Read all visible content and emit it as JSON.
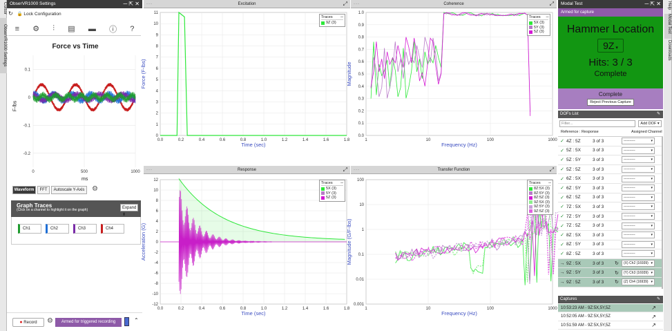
{
  "side_tabs": [
    "Cursor",
    "ObserVR1000 Settings"
  ],
  "right_side_tabs": [
    "Help",
    "Modal Test",
    "Downloads"
  ],
  "settings": {
    "title": "ObserVR1000 Settings",
    "lock": "Lock Configuration"
  },
  "fvt": {
    "title": "Force vs Time",
    "ylabel": "F-lbs",
    "xlabel": "ms",
    "yticks": [
      "0.1",
      "0",
      "-0.1",
      "-0.2"
    ],
    "xticks": [
      "0",
      "500",
      "1000"
    ]
  },
  "tabs": {
    "waveform": "Waveform",
    "fft": "FFT",
    "autoscale": "Autoscale Y-Axis"
  },
  "graph_traces": {
    "title": "Graph Traces",
    "hint": "(Click on a channel to highlight it on the graph)",
    "dropdown": "Expand",
    "channels": [
      {
        "label": "Ch1",
        "color": "#1e9c2e"
      },
      {
        "label": "Ch2",
        "color": "#1f6fd6"
      },
      {
        "label": "Ch3",
        "color": "#7a2aa8"
      },
      {
        "label": "Ch4",
        "color": "#c81e1e"
      }
    ]
  },
  "bottom": {
    "record": "Record",
    "status": "Armed for triggered recording"
  },
  "excitation": {
    "title": "Excitation",
    "ylabel": "Force (F-lbs)",
    "xlabel": "Time (sec)",
    "yticks": [
      "11",
      "10",
      "9",
      "8",
      "7",
      "6",
      "5",
      "4",
      "3",
      "2",
      "1",
      "0"
    ],
    "xticks": [
      "0.0",
      "0.2",
      "0.4",
      "0.6",
      "0.8",
      "1.0",
      "1.2",
      "1.4",
      "1.6",
      "1.8"
    ],
    "legend": {
      "title": "Traces",
      "items": [
        {
          "label": "9Z (3)",
          "color": "#2ee83a"
        }
      ]
    }
  },
  "response": {
    "title": "Response",
    "ylabel": "Acceleration (G)",
    "xlabel": "Time (sec)",
    "yticks": [
      "12",
      "10",
      "8",
      "6",
      "4",
      "2",
      "0",
      "-2",
      "-4",
      "-6",
      "-8",
      "-10",
      "-12"
    ],
    "xticks": [
      "0.0",
      "0.2",
      "0.4",
      "0.6",
      "0.8",
      "1.0",
      "1.2",
      "1.4",
      "1.6",
      "1.8"
    ],
    "legend": {
      "title": "Traces",
      "items": [
        {
          "label": "5X (3)",
          "color": "#2ee83a"
        },
        {
          "label": "5Y (3)",
          "color": "#b87ac8"
        },
        {
          "label": "5Z (3)",
          "color": "#d41ad4"
        }
      ]
    }
  },
  "coherence": {
    "title": "Coherence",
    "ylabel": "Magnitude",
    "xlabel": "Frequency (Hz)",
    "yticks": [
      "1.0",
      "0.9",
      "0.8",
      "0.7",
      "0.6",
      "0.5",
      "0.4",
      "0.3",
      "0.2",
      "0.1",
      "0.0"
    ],
    "xticks": [
      "1",
      "10",
      "100",
      "1000"
    ],
    "legend": {
      "title": "Traces",
      "items": [
        {
          "label": "5X (3)",
          "color": "#2ee83a"
        },
        {
          "label": "5Y (3)",
          "color": "#b87ac8"
        },
        {
          "label": "5Z (3)",
          "color": "#d41ad4"
        }
      ]
    }
  },
  "transfer": {
    "title": "Transfer Function",
    "ylabel": "Magnitude (G/F-lbs)",
    "xlabel": "Frequency (Hz)",
    "yticks": [
      "100",
      "10",
      "1",
      "0.1",
      "0.01",
      "0.001"
    ],
    "xticks": [
      "1",
      "10",
      "100",
      "1000"
    ],
    "legend": {
      "title": "Traces",
      "items": [
        {
          "label": "8Z:5X (3)",
          "color": "#2ee83a"
        },
        {
          "label": "8Z:5Y (3)",
          "color": "#b87ac8"
        },
        {
          "label": "8Z:5Z (3)",
          "color": "#d41ad4"
        },
        {
          "label": "9Z:5X (3)",
          "color": "#8ef08e"
        },
        {
          "label": "9Z:5Y (3)",
          "color": "#c8a0d8"
        },
        {
          "label": "9Z:5Z (3)",
          "color": "#e060e0"
        }
      ]
    }
  },
  "modal": {
    "title": "Modal Test",
    "armed": "Armed for capture",
    "hammer_label": "Hammer Location",
    "hammer_value": "9Z",
    "hits": "Hits: 3 / 3",
    "complete": "Complete",
    "status": "Complete",
    "reject": "Reject Previous Capture"
  },
  "dofs": {
    "title": "DOFs List",
    "filter": "Filter...",
    "add": "Add DOF",
    "col1": "Reference : Response",
    "col2": "Assigned Channel",
    "rows": [
      {
        "name": "4Z : 5Z",
        "count": "3 of 3",
        "ch": "----------",
        "state": "done"
      },
      {
        "name": "5Z : 5X",
        "count": "3 of 3",
        "ch": "----------",
        "state": "done"
      },
      {
        "name": "5Z : 5Y",
        "count": "3 of 3",
        "ch": "----------",
        "state": "done"
      },
      {
        "name": "5Z : 5Z",
        "count": "3 of 3",
        "ch": "----------",
        "state": "done"
      },
      {
        "name": "6Z : 5X",
        "count": "3 of 3",
        "ch": "----------",
        "state": "done"
      },
      {
        "name": "6Z : 5Y",
        "count": "3 of 3",
        "ch": "----------",
        "state": "done"
      },
      {
        "name": "6Z : 5Z",
        "count": "3 of 3",
        "ch": "----------",
        "state": "done"
      },
      {
        "name": "7Z : 5X",
        "count": "3 of 3",
        "ch": "----------",
        "state": "done"
      },
      {
        "name": "7Z : 5Y",
        "count": "3 of 3",
        "ch": "----------",
        "state": "done"
      },
      {
        "name": "7Z : 5Z",
        "count": "3 of 3",
        "ch": "----------",
        "state": "done"
      },
      {
        "name": "8Z : 5X",
        "count": "3 of 3",
        "ch": "----------",
        "state": "done"
      },
      {
        "name": "8Z : 5Y",
        "count": "3 of 3",
        "ch": "----------",
        "state": "done"
      },
      {
        "name": "8Z : 5Z",
        "count": "3 of 3",
        "ch": "----------",
        "state": "done"
      },
      {
        "name": "9Z : 5X",
        "count": "3 of 3",
        "ch": "(X) Ch2 (16939)",
        "state": "active"
      },
      {
        "name": "9Z : 5Y",
        "count": "3 of 3",
        "ch": "(Y) Ch3 (16939)",
        "state": "active"
      },
      {
        "name": "9Z : 5Z",
        "count": "3 of 3",
        "ch": "(Z) Ch4 (16939)",
        "state": "active"
      }
    ]
  },
  "captures": {
    "title": "Captures",
    "items": [
      "10:53:23 AM - 9Z:5X,5Y,5Z",
      "10:52:05 AM - 9Z:5X,5Y,5Z",
      "10:51:59 AM - 9Z:5X,5Y,5Z"
    ]
  }
}
